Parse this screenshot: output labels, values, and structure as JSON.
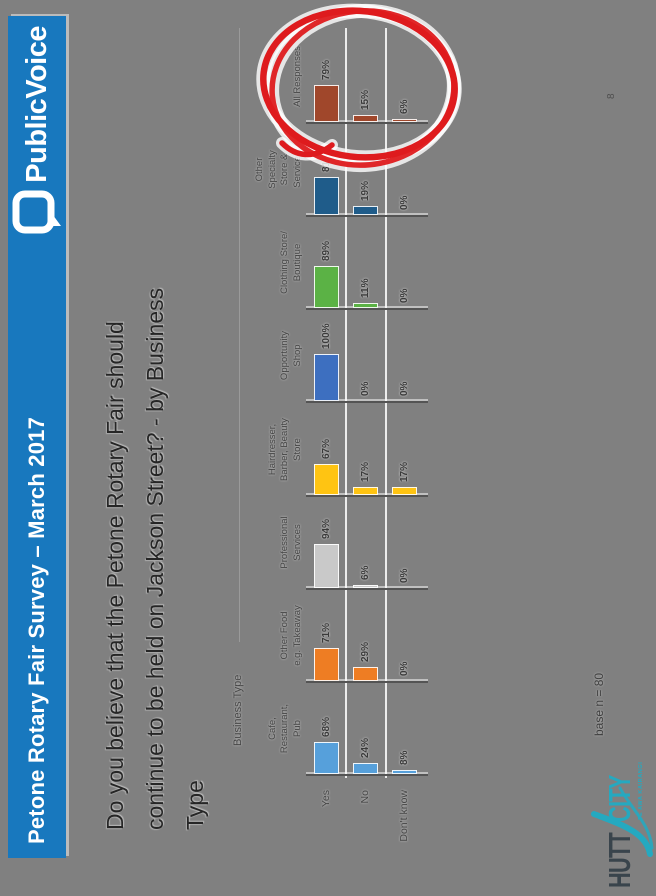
{
  "header": {
    "title": "Petone Rotary Fair Survey – March 2017",
    "logo_text": "PublicVoice",
    "bar_color": "#1878BE"
  },
  "slide_title": {
    "lines": [
      "Do you believe that the Petone Rotary Fair should",
      "continue to be held on Jackson Street? - by Business",
      "Type"
    ]
  },
  "chart_data": {
    "type": "bar",
    "title": "Do you believe that the Petone Rotary Fair should continue to be held on Jackson Street? - by Business Type",
    "axis_header": "Business Type",
    "series_rows": [
      "Yes",
      "No",
      "Don't know"
    ],
    "ylim": [
      0,
      100
    ],
    "value_suffix": "%",
    "legend_position": "left-row-labels",
    "grid": "category-panels",
    "categories": [
      {
        "name": "Cafe, Restaurant, Pub",
        "label_lines": [
          "Cafe,",
          "Restaurant,",
          "Pub"
        ],
        "color": "#56A0DB",
        "values": [
          68,
          24,
          8
        ]
      },
      {
        "name": "Other Food e.g. Takeaway",
        "label_lines": [
          "Other Food",
          "e.g. Takeaway"
        ],
        "color": "#EE7D23",
        "values": [
          71,
          29,
          0
        ]
      },
      {
        "name": "Professional Services",
        "label_lines": [
          "Professional",
          "Services"
        ],
        "color": "#C9C9C9",
        "values": [
          94,
          6,
          0
        ]
      },
      {
        "name": "Hairdresser, Barber, Beauty Store",
        "label_lines": [
          "Hairdresser,",
          "Barber, Beauty",
          "Store"
        ],
        "color": "#FFC412",
        "values": [
          67,
          17,
          17
        ]
      },
      {
        "name": "Opportunity Shop",
        "label_lines": [
          "Opportunity",
          "Shop"
        ],
        "color": "#3D6FC0",
        "values": [
          100,
          0,
          0
        ]
      },
      {
        "name": "Clothing Store/ Boutique",
        "label_lines": [
          "Clothing Store/",
          "Boutique"
        ],
        "color": "#5BB245",
        "values": [
          89,
          11,
          0
        ]
      },
      {
        "name": "Other Specialty Store & Services",
        "label_lines": [
          "Other",
          "Specialty",
          "Store &",
          "Services"
        ],
        "color": "#1F5C8A",
        "values": [
          81,
          19,
          0
        ]
      },
      {
        "name": "All Responses",
        "label_lines": [
          "All Responses"
        ],
        "color": "#A0472B",
        "values": [
          79,
          15,
          6
        ]
      }
    ],
    "annotation": {
      "shape": "hand-drawn-circle",
      "target": "All Responses",
      "color": "#DE1B1E"
    }
  },
  "footer": {
    "base_note": "base n = 80",
    "page_number": "8",
    "hutt_logo": {
      "word1": "HUTT",
      "word2": "CITY",
      "caption": "TE AWA KAIRANGI",
      "dark_color": "#39444C",
      "teal_color": "#25A9C0"
    }
  },
  "colors": {
    "background": "#808080",
    "header_bar": "#1878BE",
    "annotation_red": "#DE1B1E"
  }
}
